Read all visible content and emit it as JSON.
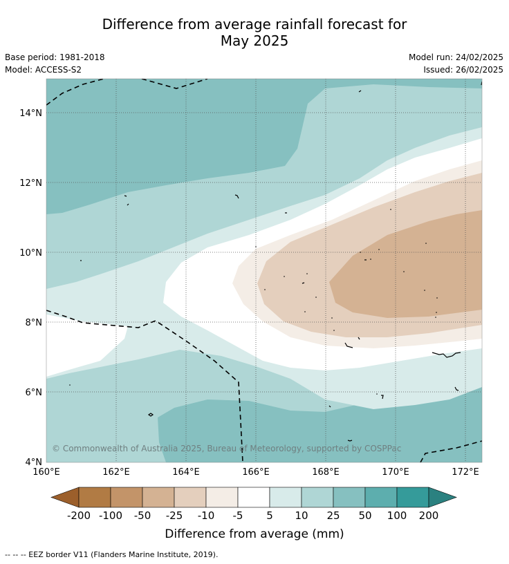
{
  "title_line1": "Difference from average rainfall forecast for",
  "title_line2": "May 2025",
  "base_period": "Base period: 1981-2018",
  "model": "Model: ACCESS-S2",
  "model_run": "Model run: 24/02/2025",
  "issued": "Issued: 26/02/2025",
  "copyright": "© Commonwealth of Australia 2025, Bureau of Meteorology, supported by COSPPac",
  "lat_labels": [
    "14°N",
    "12°N",
    "10°N",
    "8°N",
    "6°N",
    "4°N"
  ],
  "lon_labels": [
    "160°E",
    "162°E",
    "164°E",
    "166°E",
    "168°E",
    "170°E",
    "172°E"
  ],
  "colorbar": {
    "title": "Difference from average (mm)",
    "tick_labels": [
      "-200",
      "-100",
      "-50",
      "-25",
      "-10",
      "-5",
      "5",
      "10",
      "25",
      "50",
      "100",
      "200"
    ],
    "colors": [
      "#9c5f2b",
      "#b17b44",
      "#c39469",
      "#d4b293",
      "#e4cfbd",
      "#f4ede6",
      "#ffffff",
      "#d8ebea",
      "#afd6d5",
      "#86c0c0",
      "#5daeae",
      "#359b9a",
      "#2b8180"
    ]
  },
  "footnote": "--  --  -- EEZ border V11 (Flanders Marine Institute, 2019)."
}
